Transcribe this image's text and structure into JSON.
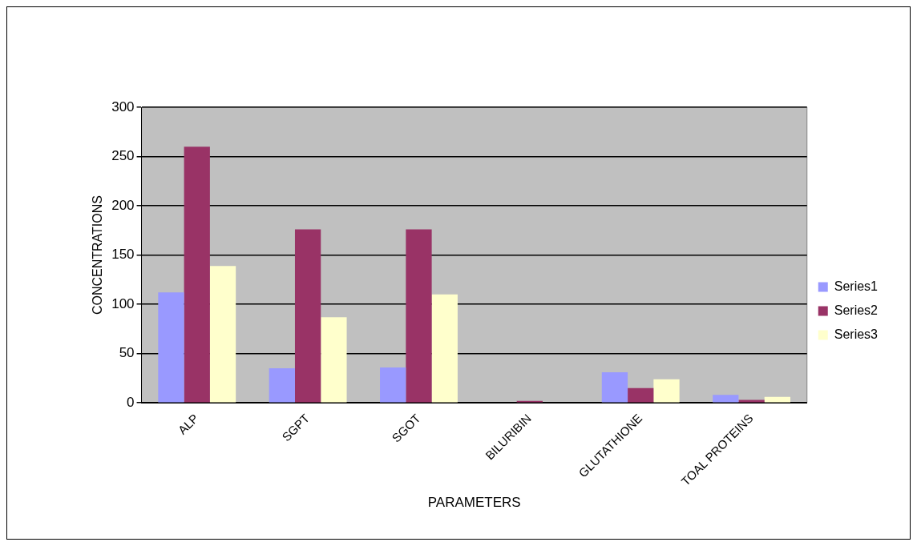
{
  "chart_data": {
    "type": "bar",
    "xlabel": "PARAMETERS",
    "ylabel": "CONCENTRATIONS",
    "categories": [
      "ALP",
      "SGPT",
      "SGOT",
      "BILURIBIN",
      "GLUTATHIONE",
      "TOAL PROTEINS"
    ],
    "series": [
      {
        "name": "Series1",
        "color": "#9999ff",
        "values": [
          112,
          35,
          36,
          0,
          31,
          8
        ]
      },
      {
        "name": "Series2",
        "color": "#993366",
        "values": [
          260,
          176,
          176,
          2,
          15,
          3
        ]
      },
      {
        "name": "Series3",
        "color": "#ffffcc",
        "values": [
          139,
          87,
          110,
          0,
          24,
          6
        ]
      }
    ],
    "ylim": [
      0,
      300
    ],
    "yticks": [
      0,
      50,
      100,
      150,
      200,
      250,
      300
    ],
    "grid": "y",
    "legend": "right"
  }
}
